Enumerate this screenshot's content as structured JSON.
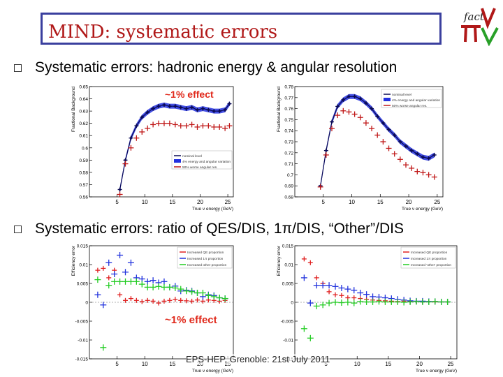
{
  "slide": {
    "title": "MIND: systematic errors",
    "bullets": [
      "Systematic errors: hadronic energy & angular resolution",
      "Systematic errors: ratio of QES/DIS, 1π/DIS, “Other”/DIS"
    ],
    "footer": "EPS-HEP, Grenoble: 21st July 2011",
    "logo_text": "fact",
    "logo_icon": "nufact-pi-nu-logo"
  },
  "chart_data": [
    {
      "type": "line",
      "ylabel": "Fractional Background",
      "xlabel": "True ν energy (GeV)",
      "xlim": [
        0,
        26
      ],
      "ylim": [
        0.56,
        0.65
      ],
      "xticks": [
        5,
        10,
        15,
        20,
        25
      ],
      "yticks": [
        0.56,
        0.57,
        0.58,
        0.59,
        0.6,
        0.61,
        0.62,
        0.63,
        0.64,
        0.65
      ],
      "annotation": "~1% effect",
      "legend": [
        "nominal level",
        "4% energy and angular variation",
        "50% worse angular res."
      ],
      "legend_position": "bottom-right",
      "colors": {
        "nominal": "#0a0a55",
        "band": "#2230e0",
        "worse": "#c01818"
      },
      "series": [
        {
          "name": "nominal level",
          "x": [
            5.5,
            6.5,
            7.5,
            8.5,
            9.5,
            10.5,
            11.5,
            12.5,
            13.5,
            14.5,
            15.5,
            16.5,
            17.5,
            18.5,
            19.5,
            20.5,
            21.5,
            22.5,
            23.5,
            24.5,
            25.3
          ],
          "y": [
            0.566,
            0.59,
            0.608,
            0.618,
            0.625,
            0.629,
            0.632,
            0.634,
            0.635,
            0.634,
            0.634,
            0.633,
            0.632,
            0.633,
            0.631,
            0.632,
            0.631,
            0.63,
            0.63,
            0.631,
            0.636
          ]
        },
        {
          "name": "50% worse angular res.",
          "x": [
            5.5,
            6.5,
            7.5,
            8.5,
            9.5,
            10.5,
            11.5,
            12.5,
            13.5,
            14.5,
            15.5,
            16.5,
            17.5,
            18.5,
            19.5,
            20.5,
            21.5,
            22.5,
            23.5,
            24.5,
            25.3
          ],
          "y": [
            0.562,
            0.587,
            0.6,
            0.608,
            0.613,
            0.616,
            0.619,
            0.62,
            0.62,
            0.62,
            0.619,
            0.618,
            0.618,
            0.619,
            0.617,
            0.618,
            0.618,
            0.617,
            0.617,
            0.616,
            0.618
          ]
        }
      ]
    },
    {
      "type": "line",
      "ylabel": "Fractional Background",
      "xlabel": "True ν energy (GeV)",
      "xlim": [
        0,
        26
      ],
      "ylim": [
        0.68,
        0.78
      ],
      "xticks": [
        5,
        10,
        15,
        20,
        25
      ],
      "yticks": [
        0.68,
        0.69,
        0.7,
        0.71,
        0.72,
        0.73,
        0.74,
        0.75,
        0.76,
        0.77,
        0.78
      ],
      "legend": [
        "nominal level",
        "4% energy and angular variation",
        "50% worse angular res."
      ],
      "legend_position": "top-right",
      "colors": {
        "nominal": "#0a0a55",
        "band": "#2230e0",
        "worse": "#c01818"
      },
      "series": [
        {
          "name": "nominal level",
          "x": [
            4.5,
            5.5,
            6.5,
            7.5,
            8.5,
            9.5,
            10.5,
            11.5,
            12.5,
            13.5,
            14.5,
            15.5,
            16.5,
            17.5,
            18.5,
            19.5,
            20.5,
            21.5,
            22.5,
            23.5,
            24.5
          ],
          "y": [
            0.69,
            0.722,
            0.748,
            0.762,
            0.768,
            0.771,
            0.771,
            0.769,
            0.765,
            0.76,
            0.753,
            0.747,
            0.741,
            0.736,
            0.73,
            0.726,
            0.722,
            0.719,
            0.716,
            0.715,
            0.718
          ]
        },
        {
          "name": "50% worse angular res.",
          "x": [
            4.5,
            5.5,
            6.5,
            7.5,
            8.5,
            9.5,
            10.5,
            11.5,
            12.5,
            13.5,
            14.5,
            15.5,
            16.5,
            17.5,
            18.5,
            19.5,
            20.5,
            21.5,
            22.5,
            23.5,
            24.5
          ],
          "y": [
            0.689,
            0.718,
            0.742,
            0.754,
            0.758,
            0.757,
            0.755,
            0.752,
            0.747,
            0.742,
            0.736,
            0.73,
            0.724,
            0.719,
            0.714,
            0.709,
            0.706,
            0.703,
            0.702,
            0.7,
            0.698
          ]
        }
      ]
    },
    {
      "type": "scatter",
      "ylabel": "Efficiency error",
      "xlabel": "True ν energy (GeV)",
      "xlim": [
        0,
        26
      ],
      "ylim": [
        -0.015,
        0.015
      ],
      "xticks": [
        5,
        10,
        15,
        20,
        25
      ],
      "yticks": [
        -0.015,
        -0.01,
        -0.005,
        0,
        0.005,
        0.01,
        0.015
      ],
      "ytick_labels": [
        "-0.015",
        "-0.01",
        "-0.005",
        "0",
        "0.005",
        "0.01",
        "0.015"
      ],
      "annotation": "~1% effect",
      "legend": [
        "Increased QE proportion",
        "Increased 1π proportion",
        "Increased other proportion"
      ],
      "legend_position": "top-right",
      "colors": {
        "qe": "#e02020",
        "onepi": "#2233dd",
        "other": "#22cc22"
      },
      "series": [
        {
          "name": "Increased QE proportion",
          "x": [
            1.5,
            2.5,
            3.5,
            4.5,
            5.5,
            6.5,
            7.5,
            8.5,
            9.5,
            10.5,
            11.5,
            12.5,
            13.5,
            14.5,
            15.5,
            16.5,
            17.5,
            18.5,
            19.5,
            20.5,
            21.5,
            22.5,
            23.5,
            24.5
          ],
          "y": [
            0.0085,
            0.009,
            0.0065,
            0.0085,
            0.002,
            0.0005,
            0.001,
            0.0005,
            0.0002,
            0.0005,
            0.0003,
            -0.0002,
            0.0003,
            0.0005,
            0.0008,
            0.0005,
            0.0004,
            0.0003,
            0.0006,
            0.0003,
            0.0006,
            0.0005,
            0.0003,
            0.0005
          ]
        },
        {
          "name": "Increased 1π proportion",
          "x": [
            1.5,
            2.5,
            3.5,
            4.5,
            5.5,
            6.5,
            7.5,
            8.5,
            9.5,
            10.5,
            11.5,
            12.5,
            13.5,
            14.5,
            15.5,
            16.5,
            17.5,
            18.5,
            19.5,
            20.5,
            21.5,
            22.5,
            23.5,
            24.5
          ],
          "y": [
            0.002,
            -0.0007,
            0.0105,
            0.0075,
            0.0125,
            0.008,
            0.0105,
            0.0065,
            0.0062,
            0.0055,
            0.0058,
            0.0052,
            0.0055,
            0.004,
            0.0043,
            0.003,
            0.0032,
            0.003,
            0.0025,
            0.0015,
            0.002,
            0.0018,
            0.0012,
            0.001
          ]
        },
        {
          "name": "Increased other proportion",
          "x": [
            1.5,
            2.5,
            3.5,
            4.5,
            5.5,
            6.5,
            7.5,
            8.5,
            9.5,
            10.5,
            11.5,
            12.5,
            13.5,
            14.5,
            15.5,
            16.5,
            17.5,
            18.5,
            19.5,
            20.5,
            21.5,
            22.5,
            23.5,
            24.5
          ],
          "y": [
            0.006,
            -0.012,
            0.0045,
            0.0055,
            0.0055,
            0.0055,
            0.0055,
            0.0055,
            0.0048,
            0.004,
            0.004,
            0.0042,
            0.004,
            0.004,
            0.0038,
            0.0035,
            0.003,
            0.0028,
            0.0025,
            0.0025,
            0.0018,
            0.0015,
            0.0012,
            0.001
          ]
        }
      ]
    },
    {
      "type": "scatter",
      "ylabel": "Efficiency error",
      "xlabel": "True ν energy (GeV)",
      "xlim": [
        0,
        26
      ],
      "ylim": [
        -0.015,
        0.015
      ],
      "xticks": [
        5,
        10,
        15,
        20,
        25
      ],
      "yticks": [
        -0.015,
        -0.01,
        -0.005,
        0,
        0.005,
        0.01,
        0.015
      ],
      "ytick_labels": [
        "-0.015",
        "-0.01",
        "-0.005",
        "0",
        "0.005",
        "0.01",
        "0.015"
      ],
      "legend": [
        "Increased QE proportion",
        "Increased 1π proportion",
        "Increased 'other' proportion"
      ],
      "legend_position": "top-right",
      "colors": {
        "qe": "#e02020",
        "onepi": "#2233dd",
        "other": "#22cc22"
      },
      "series": [
        {
          "name": "Increased QE proportion",
          "x": [
            1.5,
            2.5,
            3.5,
            4.5,
            5.5,
            6.5,
            7.5,
            8.5,
            9.5,
            10.5,
            11.5,
            12.5,
            13.5,
            14.5,
            15.5,
            16.5,
            17.5,
            18.5,
            19.5,
            20.5,
            21.5,
            22.5,
            23.5,
            24.5
          ],
          "y": [
            0.0115,
            0.0105,
            0.0065,
            0.005,
            0.0028,
            0.002,
            0.0018,
            0.0012,
            0.0012,
            0.001,
            0.0008,
            0.0006,
            0.0005,
            0.0004,
            0.0003,
            0.0002,
            0.0003,
            0.0002,
            0.0002,
            0.0001,
            0.0002,
            0.0001,
            0.0001,
            0.0001
          ]
        },
        {
          "name": "Increased 1π proportion",
          "x": [
            1.5,
            2.5,
            3.5,
            4.5,
            5.5,
            6.5,
            7.5,
            8.5,
            9.5,
            10.5,
            11.5,
            12.5,
            13.5,
            14.5,
            15.5,
            16.5,
            17.5,
            18.5,
            19.5,
            20.5,
            21.5,
            22.5,
            23.5,
            24.5
          ],
          "y": [
            0.0065,
            -0.0002,
            0.0045,
            0.0045,
            0.0045,
            0.0042,
            0.0038,
            0.0035,
            0.0032,
            0.0025,
            0.0021,
            0.0015,
            0.0014,
            0.0012,
            0.001,
            0.0008,
            0.0006,
            0.0004,
            0.0003,
            0.0003,
            0.0002,
            0.0002,
            0.0001,
            0.0001
          ]
        },
        {
          "name": "Increased 'other' proportion",
          "x": [
            1.5,
            2.5,
            3.5,
            4.5,
            5.5,
            6.5,
            7.5,
            8.5,
            9.5,
            10.5,
            11.5,
            12.5,
            13.5,
            14.5,
            15.5,
            16.5,
            17.5,
            18.5,
            19.5,
            20.5,
            21.5,
            22.5,
            23.5,
            24.5
          ],
          "y": [
            -0.007,
            -0.0095,
            -0.001,
            -0.0007,
            -0.0002,
            0.0,
            -0.0001,
            0.0,
            -0.0002,
            0.0002,
            0.0001,
            0.0001,
            0.0002,
            0.0001,
            0.0001,
            0.0001,
            0.0,
            0.0001,
            0.0002,
            0.0001,
            0.0001,
            0.0002,
            0.0001,
            0.0001
          ]
        }
      ]
    }
  ]
}
